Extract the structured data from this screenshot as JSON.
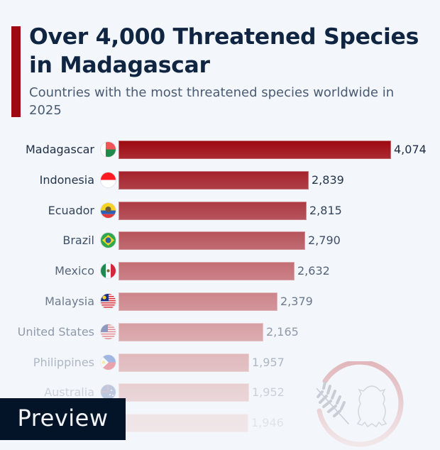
{
  "header": {
    "title": "Over 4,000 Threatened Species in Madagascar",
    "subtitle": "Countries with the most threatened species worldwide in 2025",
    "accent_color": "#9f0911"
  },
  "chart_data": {
    "type": "bar",
    "orientation": "horizontal",
    "title": "Over 4,000 Threatened Species in Madagascar",
    "subtitle": "Countries with the most threatened species worldwide in 2025",
    "xlabel": "",
    "ylabel": "",
    "grid": false,
    "legend": null,
    "categories": [
      "Madagascar",
      "Indonesia",
      "Ecuador",
      "Brazil",
      "Mexico",
      "Malaysia",
      "United States",
      "Philippines",
      "Australia",
      ""
    ],
    "values": [
      4074,
      2839,
      2815,
      2790,
      2632,
      2379,
      2165,
      1957,
      1952,
      1946
    ],
    "value_labels": [
      "4,074",
      "2,839",
      "2,815",
      "2,790",
      "2,632",
      "2,379",
      "2,165",
      "1,957",
      "1,952",
      "1,946"
    ],
    "bar_color": "#9f0911"
  },
  "rows": [
    {
      "label": "Madagascar",
      "value": 4074,
      "display": "4,074",
      "flag": "madagascar-flag-icon",
      "bar": "#9e0a12",
      "text": "#1d2c44"
    },
    {
      "label": "Indonesia",
      "value": 2839,
      "display": "2,839",
      "flag": "indonesia-flag-icon",
      "bar": "#a5232c",
      "text": "#24344d"
    },
    {
      "label": "Ecuador",
      "value": 2815,
      "display": "2,815",
      "flag": "ecuador-flag-icon",
      "bar": "#ad3a43",
      "text": "#33445c"
    },
    {
      "label": "Brazil",
      "value": 2790,
      "display": "2,790",
      "flag": "brazil-flag-icon",
      "bar": "#b8555c",
      "text": "#3f4f67"
    },
    {
      "label": "Mexico",
      "value": 2632,
      "display": "2,632",
      "flag": "mexico-flag-icon",
      "bar": "#c46e75",
      "text": "#55647a"
    },
    {
      "label": "Malaysia",
      "value": 2379,
      "display": "2,379",
      "flag": "malaysia-flag-icon",
      "bar": "#cd868b",
      "text": "#6d7a8e"
    },
    {
      "label": "United States",
      "value": 2165,
      "display": "2,165",
      "flag": "united-states-flag-icon",
      "bar": "#d7a0a4",
      "text": "#8f9aab"
    },
    {
      "label": "Philippines",
      "value": 1957,
      "display": "1,957",
      "flag": "philippines-flag-icon",
      "bar": "#e0b9bc",
      "text": "#aeb7c4"
    },
    {
      "label": "Australia",
      "value": 1952,
      "display": "1,952",
      "flag": "australia-flag-icon",
      "bar": "#e8d0d2",
      "text": "#cad0d9"
    },
    {
      "label": "",
      "value": 1946,
      "display": "1,946",
      "flag": "",
      "bar": "#efe4e6",
      "text": "#e0e4ea"
    }
  ],
  "overlay": {
    "preview_label": "Preview"
  }
}
